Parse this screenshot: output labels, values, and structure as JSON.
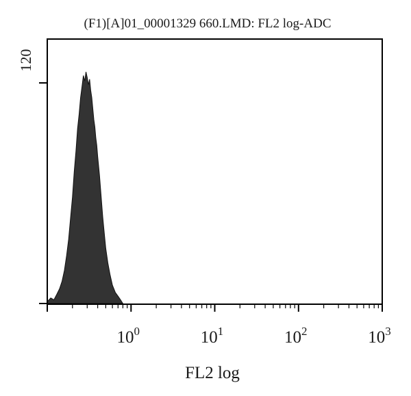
{
  "chart_data": {
    "type": "area",
    "title": "(F1)[A]01_00001329 660.LMD: FL2 log-ADC",
    "xlabel": "FL2 log",
    "ylabel": "",
    "x_scale": "log",
    "xlim": [
      0.1,
      1000
    ],
    "ylim": [
      0,
      120
    ],
    "y_tick_label": "120",
    "x_ticks": [
      {
        "value": 1,
        "base": "10",
        "exp": "0"
      },
      {
        "value": 10,
        "base": "10",
        "exp": "1"
      },
      {
        "value": 100,
        "base": "10",
        "exp": "2"
      },
      {
        "value": 1000,
        "base": "10",
        "exp": "3"
      }
    ],
    "grid": false,
    "fill_color": "#333333",
    "series": [
      {
        "x": [
          0.1,
          0.11,
          0.12,
          0.13,
          0.14,
          0.15,
          0.16,
          0.17,
          0.18,
          0.19,
          0.2,
          0.21,
          0.22,
          0.23,
          0.24,
          0.25,
          0.26,
          0.27,
          0.28,
          0.29,
          0.3,
          0.31,
          0.32,
          0.33,
          0.34,
          0.35,
          0.36,
          0.37,
          0.38,
          0.39,
          0.4,
          0.42,
          0.44,
          0.46,
          0.48,
          0.5,
          0.53,
          0.56,
          0.6,
          0.65,
          0.7,
          0.75,
          0.8
        ],
        "values": [
          1,
          3,
          2,
          5,
          8,
          12,
          18,
          26,
          35,
          47,
          58,
          72,
          83,
          95,
          103,
          112,
          118,
          124,
          121,
          126,
          123,
          119,
          122,
          116,
          112,
          106,
          100,
          96,
          90,
          86,
          80,
          70,
          58,
          47,
          38,
          30,
          22,
          16,
          10,
          6,
          4,
          2,
          0
        ]
      }
    ]
  }
}
